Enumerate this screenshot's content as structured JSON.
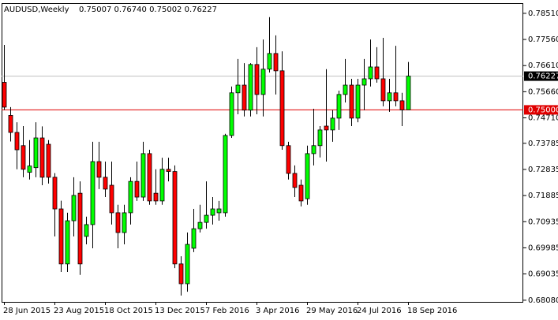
{
  "chart_data": {
    "type": "candlestick",
    "title": "AUDUSD,Weekly",
    "subtitle": "0.75007 0.76740 0.75002 0.76227",
    "categories": [
      "28 Jun 2015",
      null,
      null,
      null,
      null,
      null,
      null,
      null,
      "23 Aug 2015",
      null,
      null,
      null,
      null,
      null,
      null,
      null,
      "18 Oct 2015",
      null,
      null,
      null,
      null,
      null,
      null,
      null,
      "13 Dec 2015",
      null,
      null,
      null,
      null,
      null,
      null,
      null,
      "7 Feb 2016",
      null,
      null,
      null,
      null,
      null,
      null,
      null,
      "3 Apr 2016",
      null,
      null,
      null,
      null,
      null,
      null,
      null,
      "29 May 2016",
      null,
      null,
      null,
      null,
      null,
      null,
      null,
      "24 Jul 2016",
      null,
      null,
      null,
      null,
      null,
      null,
      null,
      "18 Sep 2016"
    ],
    "open": [
      0.76,
      0.748,
      0.7418,
      0.737,
      0.7273,
      0.729,
      0.7398,
      0.7375,
      0.7255,
      0.714,
      0.694,
      0.7097,
      0.7197,
      0.704,
      0.7083,
      0.7312,
      0.7255,
      0.7226,
      0.7126,
      0.7054,
      0.7126,
      0.724,
      0.7183,
      0.7341,
      0.7197,
      0.7169,
      0.7284,
      0.7276,
      0.694,
      0.6868,
      0.6997,
      0.7068,
      0.7091,
      0.7117,
      0.7126,
      0.7126,
      0.7407,
      0.7562,
      0.759,
      0.7499,
      0.7665,
      0.7556,
      0.7648,
      0.7705,
      0.7642,
      0.737,
      0.7269,
      0.7226,
      0.7177,
      0.7341,
      0.737,
      0.7441,
      0.7427,
      0.747,
      0.7556,
      0.759,
      0.747,
      0.759,
      0.7613,
      0.7656,
      0.7613,
      0.7533,
      0.7562,
      0.7533,
      0.75007
    ],
    "high": [
      0.7736,
      0.751,
      0.7455,
      0.7441,
      0.739,
      0.7455,
      0.744,
      0.739,
      0.727,
      0.717,
      0.7126,
      0.7255,
      0.724,
      0.7112,
      0.7384,
      0.7384,
      0.7312,
      0.7312,
      0.7155,
      0.7155,
      0.7255,
      0.7312,
      0.7384,
      0.7355,
      0.7284,
      0.7326,
      0.7326,
      0.7298,
      0.6968,
      0.7054,
      0.714,
      0.7155,
      0.724,
      0.7183,
      0.7169,
      0.7413,
      0.7585,
      0.7685,
      0.767,
      0.767,
      0.7728,
      0.7756,
      0.7837,
      0.7771,
      0.7713,
      0.7384,
      0.7298,
      0.7247,
      0.737,
      0.7504,
      0.7441,
      0.7648,
      0.7499,
      0.757,
      0.7685,
      0.7613,
      0.7613,
      0.7685,
      0.7756,
      0.7728,
      0.7762,
      0.7613,
      0.7733,
      0.7562,
      0.7674
    ],
    "low": [
      0.75,
      0.7385,
      0.7284,
      0.7255,
      0.7247,
      0.7255,
      0.7226,
      0.7232,
      0.704,
      0.6911,
      0.6911,
      0.704,
      0.69,
      0.7011,
      0.6997,
      0.7212,
      0.7183,
      0.7083,
      0.6997,
      0.7011,
      0.7083,
      0.7169,
      0.7169,
      0.7155,
      0.7155,
      0.7155,
      0.724,
      0.6925,
      0.6825,
      0.6839,
      0.6983,
      0.7054,
      0.7068,
      0.7083,
      0.7097,
      0.7112,
      0.7398,
      0.7484,
      0.7476,
      0.7476,
      0.7484,
      0.7476,
      0.7636,
      0.7556,
      0.7355,
      0.7247,
      0.7183,
      0.7149,
      0.7155,
      0.7298,
      0.7327,
      0.7312,
      0.7384,
      0.7427,
      0.7527,
      0.7441,
      0.7455,
      0.7499,
      0.7585,
      0.7599,
      0.7513,
      0.7493,
      0.7513,
      0.7441,
      0.75002
    ],
    "close": [
      0.751,
      0.7418,
      0.7355,
      0.7284,
      0.7296,
      0.7398,
      0.7255,
      0.7255,
      0.714,
      0.694,
      0.7097,
      0.7189,
      0.694,
      0.7083,
      0.7312,
      0.7255,
      0.7212,
      0.7126,
      0.7054,
      0.7126,
      0.724,
      0.7183,
      0.7341,
      0.7169,
      0.7169,
      0.7284,
      0.7276,
      0.694,
      0.6868,
      0.7011,
      0.7068,
      0.7091,
      0.7117,
      0.714,
      0.714,
      0.7407,
      0.7562,
      0.759,
      0.7499,
      0.7665,
      0.7556,
      0.7648,
      0.7705,
      0.7642,
      0.737,
      0.7269,
      0.7218,
      0.7169,
      0.7341,
      0.737,
      0.7427,
      0.7427,
      0.747,
      0.7556,
      0.759,
      0.747,
      0.759,
      0.7613,
      0.7656,
      0.7613,
      0.7533,
      0.7562,
      0.7533,
      0.75,
      0.76227
    ],
    "up_color": "#00ff00",
    "down_color": "#ff0000",
    "ylim": [
      0.6802,
      0.7888
    ],
    "yticks": [
      {
        "value": 0.7851,
        "label": "0.78510"
      },
      {
        "value": 0.7756,
        "label": "0.77560"
      },
      {
        "value": 0.7661,
        "label": "0.76610"
      },
      {
        "value": 0.7566,
        "label": "0.75660"
      },
      {
        "value": 0.7471,
        "label": "0.74710"
      },
      0.73785,
      0.72835,
      0.71885,
      0.70935,
      0.69985,
      0.69035,
      {
        "value": 0.6808,
        "label": "0.68080"
      }
    ],
    "bid_line": 0.76227,
    "level_line": {
      "value": 0.75,
      "label": "0.75000"
    }
  }
}
